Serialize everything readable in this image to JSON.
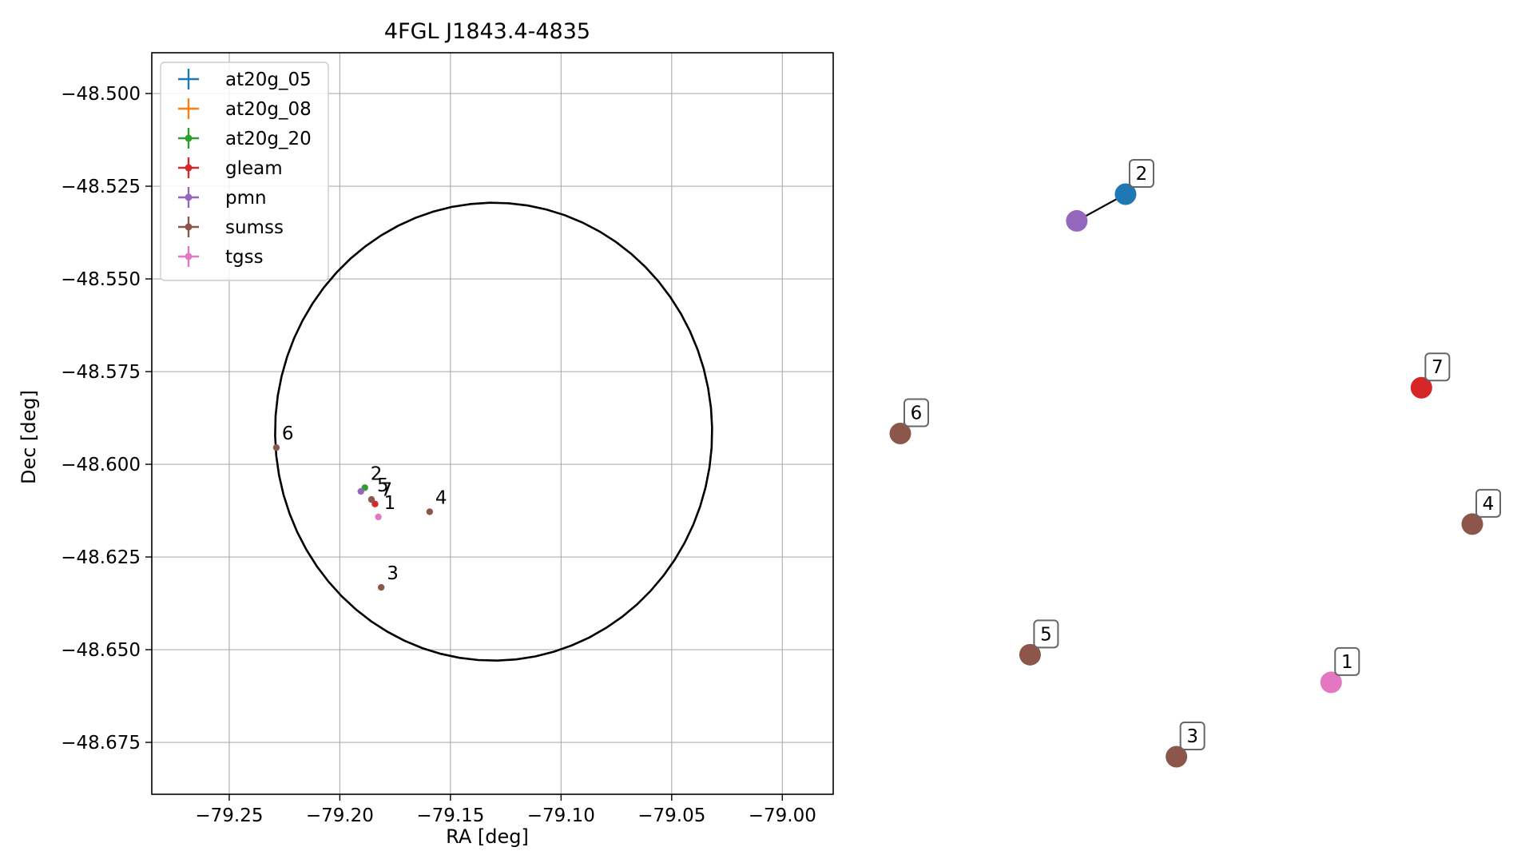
{
  "chart_data": [
    {
      "type": "scatter",
      "title": "4FGL J1843.4-4835",
      "xlabel": "RA [deg]",
      "ylabel": "Dec [deg]",
      "xlim": [
        -79.285,
        -78.977
      ],
      "ylim": [
        -48.689,
        -48.489
      ],
      "x_inverted": false,
      "grid": true,
      "legend_position": "upper-left",
      "xticks": [
        -79.25,
        -79.2,
        -79.15,
        -79.1,
        -79.05,
        -79.0
      ],
      "xtick_labels": [
        "−79.25",
        "−79.20",
        "−79.15",
        "−79.10",
        "−79.05",
        "−79.00"
      ],
      "yticks": [
        -48.5,
        -48.525,
        -48.55,
        -48.575,
        -48.6,
        -48.625,
        -48.65,
        -48.675
      ],
      "ytick_labels": [
        "−48.500",
        "−48.525",
        "−48.550",
        "−48.575",
        "−48.600",
        "−48.625",
        "−48.650",
        "−48.675"
      ],
      "legend": [
        {
          "name": "at20g_05",
          "color": "#1f77b4",
          "marker": "plus"
        },
        {
          "name": "at20g_08",
          "color": "#ff7f0e",
          "marker": "plus"
        },
        {
          "name": "at20g_20",
          "color": "#2ca02c",
          "marker": "plus-dot"
        },
        {
          "name": "gleam",
          "color": "#d62728",
          "marker": "plus-dot"
        },
        {
          "name": "pmn",
          "color": "#9467bd",
          "marker": "plus-dot"
        },
        {
          "name": "sumss",
          "color": "#8c564b",
          "marker": "plus-dot"
        },
        {
          "name": "tgss",
          "color": "#e377c2",
          "marker": "plus-dot"
        }
      ],
      "series": [
        {
          "name": "at20g_20",
          "color": "#2ca02c",
          "points": [
            {
              "x": -79.1887,
              "y": -48.6063
            }
          ]
        },
        {
          "name": "gleam",
          "color": "#d62728",
          "points": [
            {
              "x": -79.1841,
              "y": -48.6107
            }
          ]
        },
        {
          "name": "pmn",
          "color": "#9467bd",
          "points": [
            {
              "x": -79.1905,
              "y": -48.6073
            }
          ]
        },
        {
          "name": "sumss",
          "color": "#8c564b",
          "points": [
            {
              "x": -79.2287,
              "y": -48.5955
            },
            {
              "x": -79.1857,
              "y": -48.6095
            },
            {
              "x": -79.1813,
              "y": -48.6332
            },
            {
              "x": -79.1594,
              "y": -48.6128
            }
          ]
        },
        {
          "name": "tgss",
          "color": "#e377c2",
          "points": [
            {
              "x": -79.1826,
              "y": -48.6142
            }
          ]
        }
      ],
      "point_labels": [
        {
          "text": "6",
          "x": -79.2287,
          "y": -48.5955
        },
        {
          "text": "2",
          "x": -79.1887,
          "y": -48.6063
        },
        {
          "text": "5",
          "x": -79.1857,
          "y": -48.6095
        },
        {
          "text": "7",
          "x": -79.1841,
          "y": -48.6107
        },
        {
          "text": "1",
          "x": -79.1826,
          "y": -48.6142
        },
        {
          "text": "4",
          "x": -79.1594,
          "y": -48.6128
        },
        {
          "text": "3",
          "x": -79.1813,
          "y": -48.6332
        }
      ],
      "ellipse": {
        "type": "line",
        "color": "#000000",
        "center": {
          "x": -79.1305,
          "y": -48.5912
        },
        "semi_axis_x": 0.0995,
        "semi_axis_y": 0.0622,
        "angle_deg": -8
      }
    },
    {
      "type": "scatter",
      "axes": "off",
      "nodes": [
        {
          "label": "2",
          "color": "#1f77b4",
          "x": 1.0,
          "y": 2.78
        },
        {
          "label": "",
          "color": "#9467bd",
          "x": 0.53,
          "y": 2.5
        },
        {
          "label": "7",
          "color": "#d62728",
          "x": 3.85,
          "y": 0.75
        },
        {
          "label": "6",
          "color": "#8c564b",
          "x": -1.17,
          "y": 0.27
        },
        {
          "label": "4",
          "color": "#8c564b",
          "x": 4.34,
          "y": -0.68
        },
        {
          "label": "5",
          "color": "#8c564b",
          "x": 0.08,
          "y": -2.05
        },
        {
          "label": "1",
          "color": "#e377c2",
          "x": 2.98,
          "y": -2.34
        },
        {
          "label": "3",
          "color": "#8c564b",
          "x": 1.49,
          "y": -3.12
        }
      ],
      "edges": [
        [
          0,
          1
        ]
      ]
    }
  ]
}
